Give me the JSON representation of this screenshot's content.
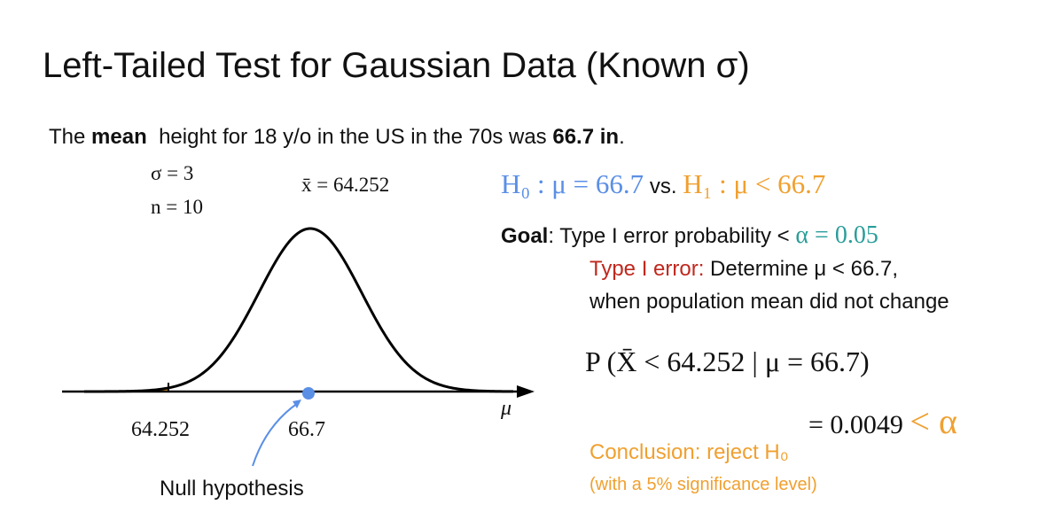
{
  "title": "Left-Tailed Test for Gaussian Data (Known σ)",
  "intro": {
    "lead": "The",
    "mean": "mean",
    "middle": "height for 18 y/o in the US in the 70s was",
    "value": "66.7 in",
    "end": "."
  },
  "plot": {
    "sigma": "σ = 3",
    "n": "n = 10",
    "xbar": "x̄ = 64.252",
    "tail_label": "64.252",
    "null_label": "66.7",
    "axis_label": "μ",
    "null_note": "Null hypothesis"
  },
  "hypotheses": {
    "h0": "H₀ : μ = 66.7",
    "vs": "vs.",
    "h1": "H₁ : μ < 66.7"
  },
  "goal": {
    "label": "Goal",
    "text": ": Type I error probability <",
    "alpha": "α = 0.05"
  },
  "type1": {
    "label": "Type I error:",
    "text": "Determine μ < 66.7,",
    "line2": "when population mean did not change"
  },
  "probability": {
    "expr": "P (X̄ < 64.252 | μ = 66.7)",
    "result": "= 0.0049",
    "compare": "< α"
  },
  "conclusion": {
    "text": "Conclusion: reject H₀",
    "note": "(with a 5% significance level)"
  }
}
